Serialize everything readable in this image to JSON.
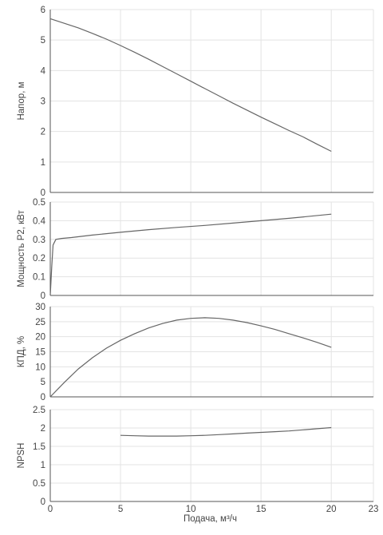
{
  "chart_data": [
    {
      "type": "line",
      "ylabel": "Напор, м",
      "xlim": [
        0,
        23
      ],
      "ylim": [
        0,
        6
      ],
      "yticks": [
        0,
        1,
        2,
        3,
        4,
        5,
        6
      ],
      "grid": true,
      "series": [
        {
          "x": [
            0,
            1,
            2,
            3,
            4,
            5,
            6,
            7,
            8,
            9,
            10,
            11,
            12,
            13,
            14,
            15,
            16,
            17,
            18,
            19,
            20
          ],
          "y": [
            5.7,
            5.55,
            5.4,
            5.22,
            5.03,
            4.82,
            4.6,
            4.37,
            4.13,
            3.89,
            3.65,
            3.41,
            3.17,
            2.93,
            2.7,
            2.47,
            2.25,
            2.03,
            1.82,
            1.58,
            1.35
          ]
        }
      ]
    },
    {
      "type": "line",
      "ylabel": "Мощность P2, кВт",
      "xlim": [
        0,
        23
      ],
      "ylim": [
        0,
        0.5
      ],
      "yticks": [
        0,
        0.1,
        0.2,
        0.3,
        0.4,
        0.5
      ],
      "grid": true,
      "series": [
        {
          "x": [
            0,
            0.1,
            0.2,
            0.4,
            0.8,
            1.5,
            3,
            5,
            7,
            9,
            11,
            13,
            15,
            17,
            20
          ],
          "y": [
            0,
            0.15,
            0.27,
            0.3,
            0.305,
            0.31,
            0.323,
            0.338,
            0.352,
            0.364,
            0.375,
            0.387,
            0.4,
            0.413,
            0.435
          ]
        }
      ]
    },
    {
      "type": "line",
      "ylabel": "КПД, %",
      "xlim": [
        0,
        23
      ],
      "ylim": [
        0,
        30
      ],
      "yticks": [
        0,
        5,
        10,
        15,
        20,
        25,
        30
      ],
      "grid": true,
      "series": [
        {
          "x": [
            0,
            1,
            2,
            3,
            4,
            5,
            6,
            7,
            8,
            9,
            10,
            11,
            12,
            13,
            14,
            15,
            16,
            17,
            18,
            19,
            20
          ],
          "y": [
            0,
            4.8,
            9.3,
            13.0,
            16.2,
            18.8,
            21.0,
            22.9,
            24.4,
            25.5,
            26.1,
            26.3,
            26.1,
            25.5,
            24.7,
            23.6,
            22.4,
            21.0,
            19.6,
            18.1,
            16.5
          ]
        }
      ]
    },
    {
      "type": "line",
      "ylabel": "NPSH",
      "xlabel": "Подача, м³/ч",
      "xlim": [
        0,
        23
      ],
      "ylim": [
        0,
        2.5
      ],
      "yticks": [
        0,
        0.5,
        1,
        1.5,
        2,
        2.5
      ],
      "xticks": [
        0,
        5,
        10,
        15,
        20,
        23
      ],
      "grid": true,
      "series": [
        {
          "x": [
            5,
            6,
            7,
            8,
            9,
            10,
            11,
            12,
            13,
            14,
            15,
            16,
            17,
            18,
            19,
            20
          ],
          "y": [
            1.8,
            1.79,
            1.78,
            1.78,
            1.78,
            1.79,
            1.8,
            1.82,
            1.84,
            1.86,
            1.88,
            1.9,
            1.92,
            1.95,
            1.98,
            2.01
          ]
        }
      ]
    }
  ]
}
